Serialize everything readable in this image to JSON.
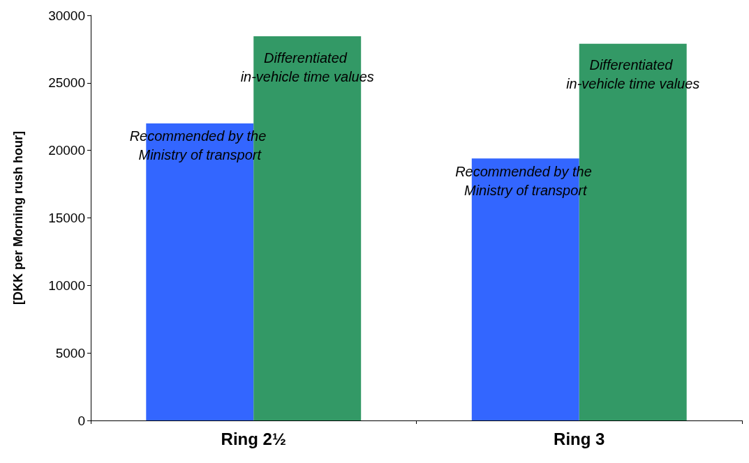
{
  "chart_data": {
    "type": "bar",
    "ylabel": "[DKK per Morning rush hour]",
    "categories": [
      "Ring 2½",
      "Ring 3"
    ],
    "series": [
      {
        "name": "Recommended by the Ministry of transport",
        "color": "#3366ff",
        "values": [
          22000,
          19400
        ]
      },
      {
        "name": "Differentiated in-vehicle time values",
        "color": "#339966",
        "values": [
          28450,
          27900
        ]
      }
    ],
    "ylim": [
      0,
      30000
    ],
    "yticks": [
      0,
      5000,
      10000,
      15000,
      20000,
      25000,
      30000
    ],
    "grid": false,
    "legend": false
  }
}
